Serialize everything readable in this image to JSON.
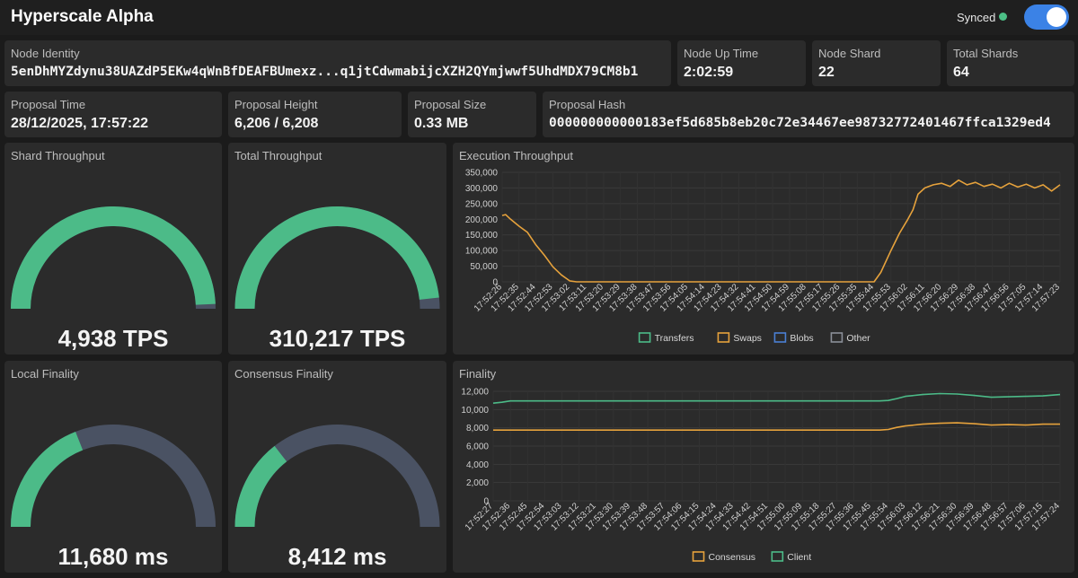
{
  "header": {
    "title": "Hyperscale Alpha",
    "sync_status": "Synced",
    "colors": {
      "synced": "#4cbf86",
      "toggle": "#3b82e6"
    }
  },
  "stats": {
    "node_identity": {
      "label": "Node Identity",
      "value": "5enDhMYZdynu38UAZdP5EKw4qWnBfDEAFBUmexz...q1jtCdwmabijcXZH2QYmjwwf5UhdMDX79CM8b1"
    },
    "node_up_time": {
      "label": "Node Up Time",
      "value": "2:02:59"
    },
    "node_shard": {
      "label": "Node Shard",
      "value": "22"
    },
    "total_shards": {
      "label": "Total Shards",
      "value": "64"
    },
    "proposal_time": {
      "label": "Proposal Time",
      "value": "28/12/2025, 17:57:22"
    },
    "proposal_height": {
      "label": "Proposal Height",
      "value": "6,206 / 6,208"
    },
    "proposal_size": {
      "label": "Proposal Size",
      "value": "0.33 MB"
    },
    "proposal_hash": {
      "label": "Proposal Hash",
      "value": "000000000000183ef5d685b8eb20c72e34467ee98732772401467ffca1329ed4"
    }
  },
  "gauges": {
    "shard_throughput": {
      "label": "Shard Throughput",
      "value": "4,938 TPS",
      "fraction": 0.985
    },
    "total_throughput": {
      "label": "Total Throughput",
      "value": "310,217 TPS",
      "fraction": 0.965
    },
    "local_finality": {
      "label": "Local Finality",
      "value": "11,680 ms",
      "fraction": 0.38
    },
    "consensus_finality": {
      "label": "Consensus Finality",
      "value": "8,412 ms",
      "fraction": 0.29
    },
    "colors": {
      "fill": "#4cbb88",
      "track": "#4a5263"
    }
  },
  "chart_data": [
    {
      "type": "line",
      "title": "Execution Throughput",
      "ylim": [
        0,
        350000
      ],
      "yticks": [
        "0",
        "50,000",
        "100,000",
        "150,000",
        "200,000",
        "250,000",
        "300,000",
        "350,000"
      ],
      "x_labels": [
        "17:52:26",
        "17:52:35",
        "17:52:44",
        "17:52:53",
        "17:53:02",
        "17:53:11",
        "17:53:20",
        "17:53:29",
        "17:53:38",
        "17:53:47",
        "17:53:56",
        "17:54:05",
        "17:54:14",
        "17:54:23",
        "17:54:32",
        "17:54:41",
        "17:54:50",
        "17:54:59",
        "17:55:08",
        "17:55:17",
        "17:55:26",
        "17:55:35",
        "17:55:44",
        "17:55:53",
        "17:56:02",
        "17:56:11",
        "17:56:20",
        "17:56:29",
        "17:56:38",
        "17:56:47",
        "17:56:56",
        "17:57:05",
        "17:57:14",
        "17:57:23"
      ],
      "series": [
        {
          "name": "Transfers",
          "color": "#4cbb88",
          "points": []
        },
        {
          "name": "Swaps",
          "color": "#e6a23c",
          "points": [
            [
              0,
              212000
            ],
            [
              0.2,
              215000
            ],
            [
              0.5,
              200000
            ],
            [
              1,
              178000
            ],
            [
              1.5,
              158000
            ],
            [
              2,
              118000
            ],
            [
              2.5,
              85000
            ],
            [
              3,
              48000
            ],
            [
              3.5,
              22000
            ],
            [
              4,
              3000
            ],
            [
              4.4,
              0
            ],
            [
              22,
              0
            ],
            [
              22.4,
              30000
            ],
            [
              23,
              100000
            ],
            [
              23.5,
              155000
            ],
            [
              24,
              200000
            ],
            [
              24.3,
              230000
            ],
            [
              24.6,
              280000
            ],
            [
              25,
              300000
            ],
            [
              25.5,
              310000
            ],
            [
              26,
              315000
            ],
            [
              26.5,
              305000
            ],
            [
              27,
              325000
            ],
            [
              27.5,
              310000
            ],
            [
              28,
              318000
            ],
            [
              28.5,
              305000
            ],
            [
              29,
              312000
            ],
            [
              29.5,
              300000
            ],
            [
              30,
              315000
            ],
            [
              30.5,
              303000
            ],
            [
              31,
              312000
            ],
            [
              31.5,
              300000
            ],
            [
              32,
              310000
            ],
            [
              32.5,
              290000
            ],
            [
              33,
              310000
            ]
          ]
        },
        {
          "name": "Blobs",
          "color": "#4a7fd4",
          "points": []
        },
        {
          "name": "Other",
          "color": "#8a8f98",
          "points": []
        }
      ],
      "legend": "bottom"
    },
    {
      "type": "line",
      "title": "Finality",
      "ylim": [
        0,
        12000
      ],
      "yticks": [
        "0",
        "2,000",
        "4,000",
        "6,000",
        "8,000",
        "10,000",
        "12,000"
      ],
      "x_labels": [
        "17:52:27",
        "17:52:36",
        "17:52:45",
        "17:52:54",
        "17:53:03",
        "17:53:12",
        "17:53:21",
        "17:53:30",
        "17:53:39",
        "17:53:48",
        "17:53:57",
        "17:54:06",
        "17:54:15",
        "17:54:24",
        "17:54:33",
        "17:54:42",
        "17:54:51",
        "17:55:00",
        "17:55:09",
        "17:55:18",
        "17:55:27",
        "17:55:36",
        "17:55:45",
        "17:55:54",
        "17:56:03",
        "17:56:12",
        "17:56:21",
        "17:56:30",
        "17:56:39",
        "17:56:48",
        "17:56:57",
        "17:57:06",
        "17:57:15",
        "17:57:24"
      ],
      "series": [
        {
          "name": "Consensus",
          "color": "#e6a23c",
          "points": [
            [
              0,
              7750
            ],
            [
              22.5,
              7750
            ],
            [
              23,
              7820
            ],
            [
              23.5,
              8050
            ],
            [
              24,
              8200
            ],
            [
              25,
              8400
            ],
            [
              26,
              8500
            ],
            [
              27,
              8550
            ],
            [
              28,
              8450
            ],
            [
              29,
              8300
            ],
            [
              30,
              8350
            ],
            [
              31,
              8300
            ],
            [
              32,
              8400
            ],
            [
              33,
              8400
            ]
          ]
        },
        {
          "name": "Client",
          "color": "#4cbb88",
          "points": [
            [
              0,
              10700
            ],
            [
              0.5,
              10800
            ],
            [
              1,
              10950
            ],
            [
              22.5,
              10950
            ],
            [
              23,
              11000
            ],
            [
              23.5,
              11200
            ],
            [
              24,
              11450
            ],
            [
              25,
              11650
            ],
            [
              26,
              11750
            ],
            [
              27,
              11700
            ],
            [
              28,
              11550
            ],
            [
              29,
              11350
            ],
            [
              30,
              11400
            ],
            [
              31,
              11450
            ],
            [
              32,
              11500
            ],
            [
              33,
              11650
            ]
          ]
        }
      ],
      "legend": "bottom"
    }
  ]
}
